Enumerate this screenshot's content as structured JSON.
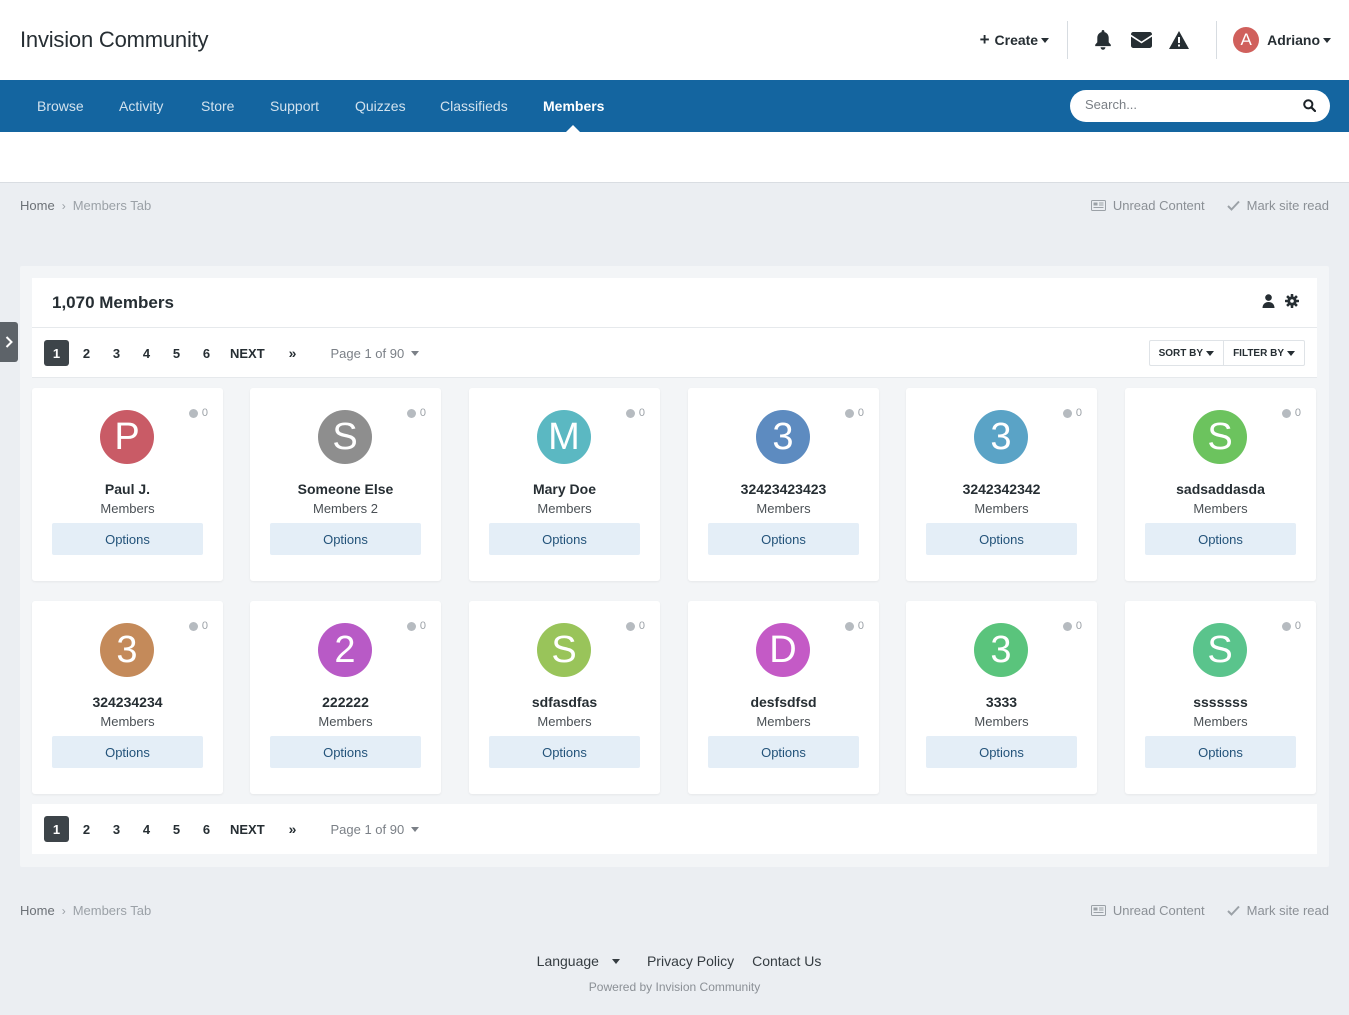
{
  "site": {
    "title": "Invision Community"
  },
  "userbar": {
    "create_label": "Create",
    "user_initial": "A",
    "user_name": "Adriano"
  },
  "nav": {
    "items": [
      "Browse",
      "Activity",
      "Store",
      "Support",
      "Quizzes",
      "Classifieds",
      "Members"
    ],
    "active": "Members",
    "search_placeholder": "Search..."
  },
  "breadcrumb": {
    "home": "Home",
    "current": "Members Tab"
  },
  "actions": {
    "unread": "Unread Content",
    "mark_read": "Mark site read"
  },
  "members_box": {
    "title": "1,070 Members"
  },
  "pagination": {
    "pages": [
      "1",
      "2",
      "3",
      "4",
      "5",
      "6"
    ],
    "current": "1",
    "next": "NEXT",
    "last": "»",
    "page_info": "Page 1 of 90",
    "sort_by": "SORT BY",
    "filter_by": "FILTER BY"
  },
  "members": [
    {
      "initial": "P",
      "name": "Paul J.",
      "group": "Members",
      "color": "#c95b66",
      "reputation": "0"
    },
    {
      "initial": "S",
      "name": "Someone Else",
      "group": "Members 2",
      "color": "#8e8e8e",
      "reputation": "0"
    },
    {
      "initial": "M",
      "name": "Mary Doe",
      "group": "Members",
      "color": "#5bb8c2",
      "reputation": "0"
    },
    {
      "initial": "3",
      "name": "32423423423",
      "group": "Members",
      "color": "#5d8bc0",
      "reputation": "0"
    },
    {
      "initial": "3",
      "name": "3242342342",
      "group": "Members",
      "color": "#5aa3c6",
      "reputation": "0"
    },
    {
      "initial": "S",
      "name": "sadsaddasda",
      "group": "Members",
      "color": "#6cc35e",
      "reputation": "0"
    },
    {
      "initial": "3",
      "name": "324234234",
      "group": "Members",
      "color": "#c48a5a",
      "reputation": "0"
    },
    {
      "initial": "2",
      "name": "222222",
      "group": "Members",
      "color": "#b85ac6",
      "reputation": "0"
    },
    {
      "initial": "S",
      "name": "sdfasdfas",
      "group": "Members",
      "color": "#99c45a",
      "reputation": "0"
    },
    {
      "initial": "D",
      "name": "desfsdfsd",
      "group": "Members",
      "color": "#c45ac6",
      "reputation": "0"
    },
    {
      "initial": "3",
      "name": "3333",
      "group": "Members",
      "color": "#5ac47c",
      "reputation": "0"
    },
    {
      "initial": "S",
      "name": "sssssss",
      "group": "Members",
      "color": "#5ac48c",
      "reputation": "0"
    }
  ],
  "member_option_label": "Options",
  "footer": {
    "language": "Language",
    "privacy": "Privacy Policy",
    "contact": "Contact Us",
    "powered": "Powered by Invision Community"
  },
  "colors": {
    "nav_bg": "#1465a0",
    "option_bg": "#e4eef7",
    "page_bg": "#ebeef2"
  }
}
